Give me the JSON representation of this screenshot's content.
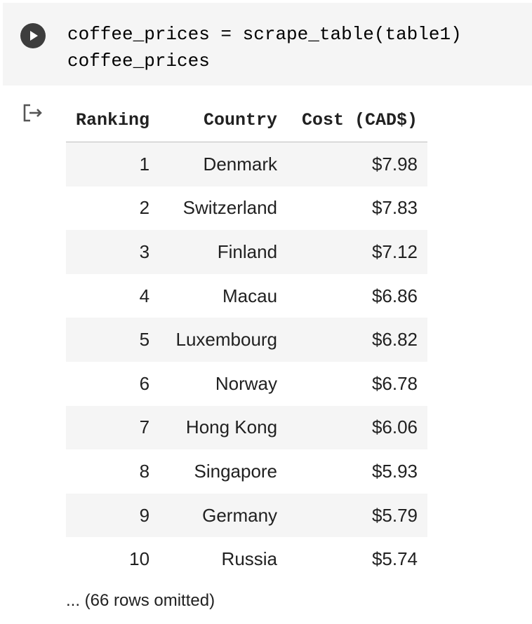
{
  "code_cell": {
    "lines": [
      "coffee_prices = scrape_table(table1)",
      "coffee_prices"
    ]
  },
  "output": {
    "columns": [
      "Ranking",
      "Country",
      "Cost (CAD$)"
    ],
    "rows": [
      [
        "1",
        "Denmark",
        "$7.98"
      ],
      [
        "2",
        "Switzerland",
        "$7.83"
      ],
      [
        "3",
        "Finland",
        "$7.12"
      ],
      [
        "4",
        "Macau",
        "$6.86"
      ],
      [
        "5",
        "Luxembourg",
        "$6.82"
      ],
      [
        "6",
        "Norway",
        "$6.78"
      ],
      [
        "7",
        "Hong Kong",
        "$6.06"
      ],
      [
        "8",
        "Singapore",
        "$5.93"
      ],
      [
        "9",
        "Germany",
        "$5.79"
      ],
      [
        "10",
        "Russia",
        "$5.74"
      ]
    ],
    "footer": "... (66 rows omitted)"
  },
  "icons": {
    "run": "play-icon",
    "output": "output-arrow-icon"
  },
  "colors": {
    "cell_background": "#f5f5f5",
    "run_button": "#3d3d3d",
    "row_stripe": "#f5f5f5",
    "text": "#212121"
  }
}
